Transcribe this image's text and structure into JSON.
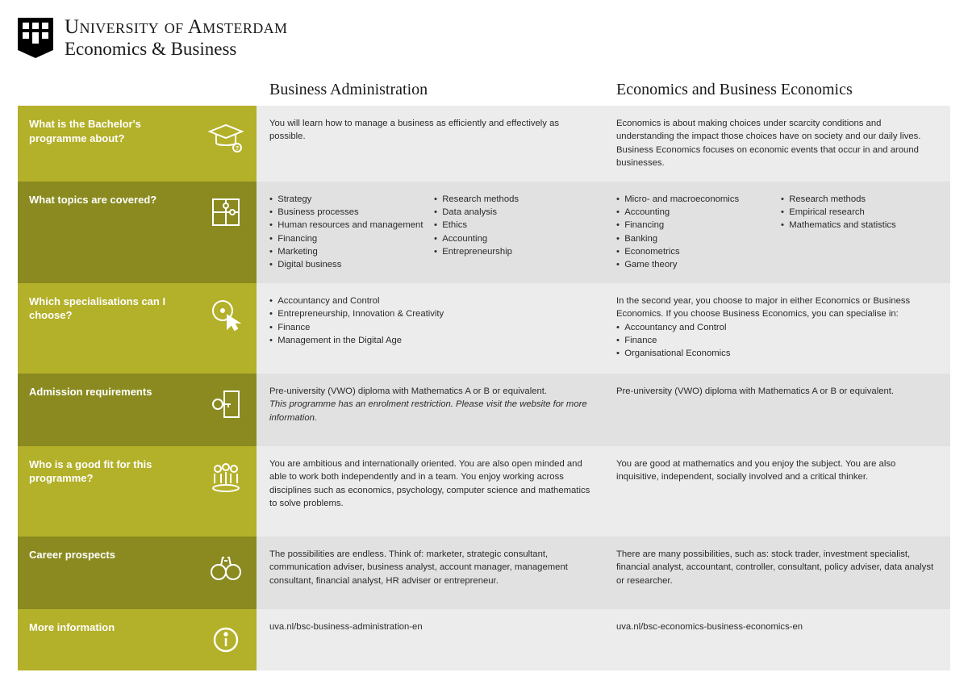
{
  "colors": {
    "label_light": "#b3b029",
    "label_dark": "#8a8a20",
    "cell_light": "#ececec",
    "cell_dark": "#e1e1e1",
    "text": "#2b2b2b",
    "label_text": "#ffffff"
  },
  "header": {
    "line1": "University of Amsterdam",
    "line2": "Economics & Business"
  },
  "columns": {
    "col1": "Business Administration",
    "col2": "Economics and Business Economics"
  },
  "rows": {
    "about": {
      "label": "What is the Bachelor's programme about?",
      "icon": "graduation-cap-icon",
      "ba": "You will learn how to manage a business as efficiently and effectively as possible.",
      "ebe": "Economics is about making choices under scarcity conditions and understanding the impact those choices have on society and our daily lives. Business Economics focuses on economic events that occur in and around businesses."
    },
    "topics": {
      "label": "What topics are covered?",
      "icon": "puzzle-icon",
      "ba_left": [
        "Strategy",
        "Business processes",
        "Human resources and management",
        "Financing",
        "Marketing",
        "Digital business"
      ],
      "ba_right": [
        "Research methods",
        "Data analysis",
        "Ethics",
        "Accounting",
        "Entrepreneurship"
      ],
      "ebe_left": [
        "Micro- and macroeconomics",
        "Accounting",
        "Financing",
        "Banking",
        "Econometrics",
        "Game theory"
      ],
      "ebe_right": [
        "Research methods",
        "Empirical research",
        "Mathematics and statistics"
      ]
    },
    "spec": {
      "label": "Which specialisations can I choose?",
      "icon": "cursor-icon",
      "ba": [
        "Accountancy and Control",
        "Entrepreneurship, Innovation & Creativity",
        "Finance",
        "Management in the Digital Age"
      ],
      "ebe_intro": "In the second year, you choose to major in either Economics or Business Economics. If you choose Business Economics, you can specialise in:",
      "ebe_items": [
        "Accountancy and Control",
        "Finance",
        "Organisational Economics"
      ]
    },
    "admission": {
      "label": "Admission requirements",
      "icon": "key-icon",
      "ba_main": "Pre-university (VWO) diploma with Mathematics A or B or equivalent.",
      "ba_note": "This programme has an enrolment restriction. Please visit the website for more information.",
      "ebe": "Pre-university (VWO) diploma with Mathematics A or B or equivalent."
    },
    "fit": {
      "label": "Who is a good fit for this programme?",
      "icon": "people-icon",
      "ba": "You are ambitious and internationally oriented. You are also open minded and able to work both independently and in a team. You enjoy working across disciplines such as economics, psychology, computer science and mathematics to solve problems.",
      "ebe": "You are good at mathematics and you enjoy the subject. You are also inquisitive, independent, socially involved and a critical thinker."
    },
    "career": {
      "label": "Career prospects",
      "icon": "binoculars-icon",
      "ba": "The possibilities are endless. Think of: marketer, strategic consultant, communication adviser, business analyst, account manager, management consultant, financial analyst, HR adviser or entrepreneur.",
      "ebe": "There are many possibilities, such as: stock trader, investment specialist, financial analyst, accountant, controller, consultant, policy adviser, data analyst or researcher."
    },
    "more": {
      "label": "More information",
      "icon": "info-icon",
      "ba": "uva.nl/bsc-business-administration-en",
      "ebe": "uva.nl/bsc-economics-business-economics-en"
    }
  }
}
